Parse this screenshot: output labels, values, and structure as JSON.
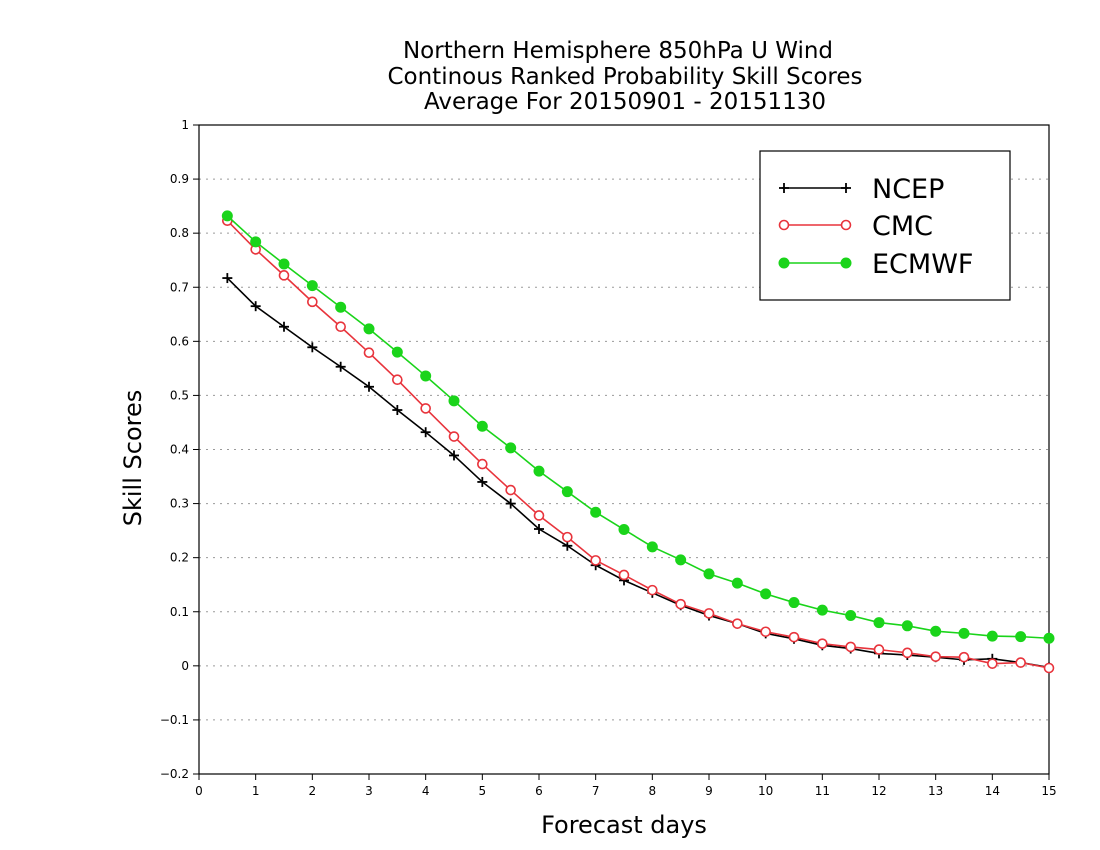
{
  "chart_data": {
    "type": "line",
    "title_lines": [
      "Northern Hemisphere 850hPa U Wind",
      "Continous Ranked Probability Skill Scores",
      "Average For 20150901 - 20151130"
    ],
    "xlabel": "Forecast days",
    "ylabel": "Skill Scores",
    "xlim": [
      0,
      15
    ],
    "ylim": [
      -0.2,
      1
    ],
    "xticks": [
      "0",
      "1",
      "2",
      "3",
      "4",
      "5",
      "6",
      "7",
      "8",
      "9",
      "10",
      "11",
      "12",
      "13",
      "14",
      "15"
    ],
    "yticks": [
      "−0.2",
      "−0.1",
      "0",
      "0.1",
      "0.2",
      "0.3",
      "0.4",
      "0.5",
      "0.6",
      "0.7",
      "0.8",
      "0.9",
      "1"
    ],
    "grid": true,
    "legend_position": "top-right",
    "x": [
      0.5,
      1,
      1.5,
      2,
      2.5,
      3,
      3.5,
      4,
      4.5,
      5,
      5.5,
      6,
      6.5,
      7,
      7.5,
      8,
      8.5,
      9,
      9.5,
      10,
      10.5,
      11,
      11.5,
      12,
      12.5,
      13,
      13.5,
      14,
      14.5,
      15
    ],
    "series": [
      {
        "name": "NCEP",
        "color": "#000000",
        "marker": "plus",
        "values": [
          0.717,
          0.665,
          0.627,
          0.589,
          0.553,
          0.516,
          0.473,
          0.432,
          0.389,
          0.34,
          0.3,
          0.253,
          0.222,
          0.186,
          0.158,
          0.135,
          0.112,
          0.093,
          0.078,
          0.06,
          0.05,
          0.038,
          0.032,
          0.023,
          0.02,
          0.016,
          0.011,
          0.013,
          0.006,
          -0.003
        ]
      },
      {
        "name": "CMC",
        "color": "#e8343c",
        "marker": "open-circle",
        "values": [
          0.823,
          0.77,
          0.722,
          0.673,
          0.627,
          0.579,
          0.529,
          0.476,
          0.424,
          0.373,
          0.325,
          0.278,
          0.238,
          0.195,
          0.168,
          0.14,
          0.114,
          0.097,
          0.078,
          0.063,
          0.053,
          0.041,
          0.035,
          0.03,
          0.024,
          0.017,
          0.016,
          0.004,
          0.006,
          -0.004
        ]
      },
      {
        "name": "ECMWF",
        "color": "#1ad41a",
        "marker": "filled-circle",
        "values": [
          0.832,
          0.784,
          0.743,
          0.703,
          0.663,
          0.623,
          0.58,
          0.536,
          0.49,
          0.443,
          0.403,
          0.36,
          0.322,
          0.284,
          0.252,
          0.22,
          0.196,
          0.17,
          0.153,
          0.133,
          0.117,
          0.103,
          0.093,
          0.08,
          0.074,
          0.064,
          0.06,
          0.055,
          0.054,
          0.051
        ]
      }
    ]
  }
}
